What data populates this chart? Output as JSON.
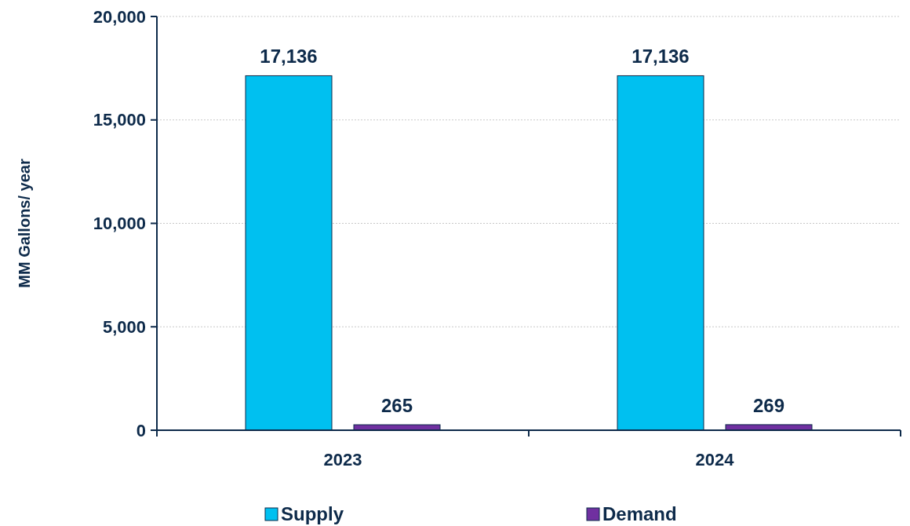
{
  "chart_data": {
    "type": "bar",
    "ylabel": "MM Gallons/ year",
    "categories": [
      "2023",
      "2024"
    ],
    "series": [
      {
        "name": "Supply",
        "color": "#00c0f0",
        "values": [
          17136,
          17136
        ]
      },
      {
        "name": "Demand",
        "color": "#7030a0",
        "values": [
          265,
          269
        ]
      }
    ],
    "ylim": [
      0,
      20000
    ],
    "yticks": [
      {
        "value": 0,
        "label": "0"
      },
      {
        "value": 5000,
        "label": "5,000"
      },
      {
        "value": 10000,
        "label": "10,000"
      },
      {
        "value": 15000,
        "label": "15,000"
      },
      {
        "value": 20000,
        "label": "20,000"
      }
    ],
    "grid": "y",
    "legend": "bottom",
    "value_labels": [
      [
        "17,136",
        "17,136"
      ],
      [
        "265",
        "269"
      ]
    ]
  }
}
